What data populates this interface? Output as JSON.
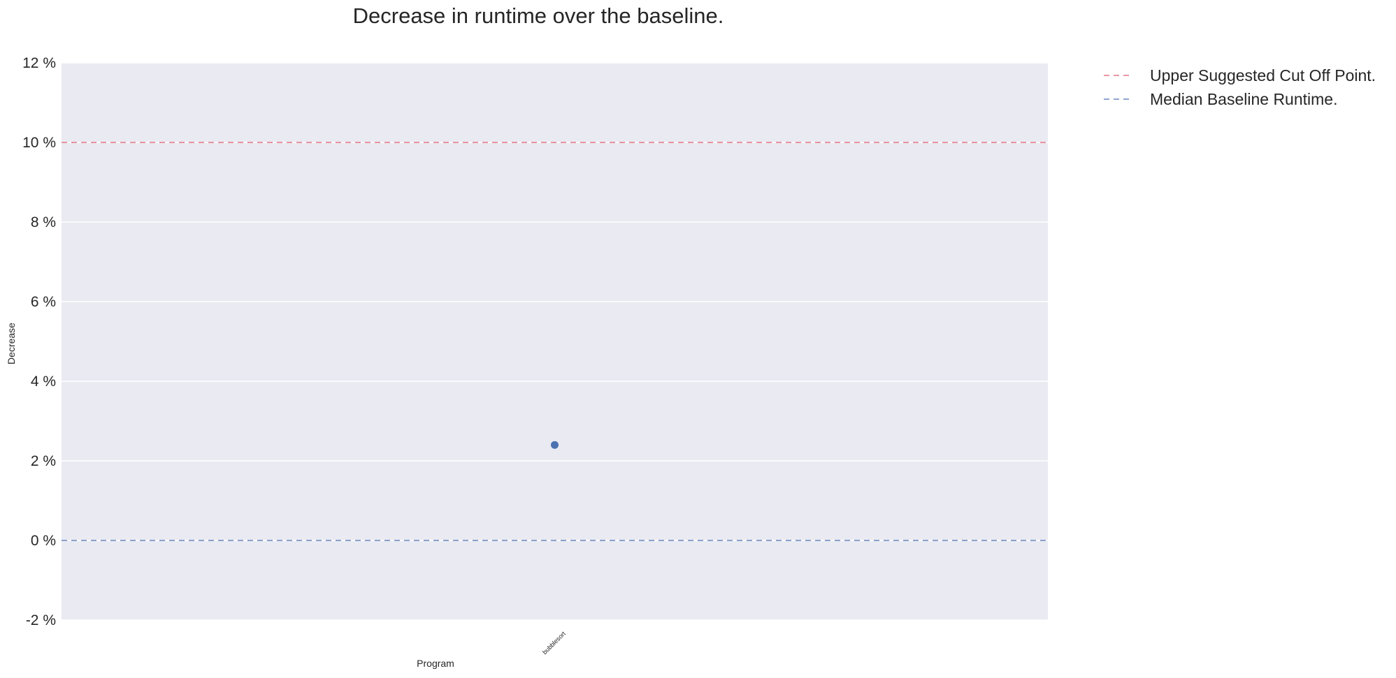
{
  "chart_data": {
    "type": "scatter",
    "title": "Decrease in runtime over the baseline.",
    "xlabel": "Program",
    "ylabel": "Decrease",
    "categories": [
      "bubblesort"
    ],
    "series": [
      {
        "values": [
          2.4
        ],
        "color": "#4c72b0"
      }
    ],
    "ylim": [
      -2,
      12
    ],
    "yticks": [
      {
        "value": -2,
        "label": "-2 %"
      },
      {
        "value": 0,
        "label": "0 %"
      },
      {
        "value": 2,
        "label": "2 %"
      },
      {
        "value": 4,
        "label": "4 %"
      },
      {
        "value": 6,
        "label": "6 %"
      },
      {
        "value": 8,
        "label": "8 %"
      },
      {
        "value": 10,
        "label": "10 %"
      },
      {
        "value": 12,
        "label": "12 %"
      }
    ],
    "reference_lines": [
      {
        "name": "Upper Suggested Cut Off Point.",
        "value": 10,
        "color": "#dd5b6c",
        "style": "dashed"
      },
      {
        "name": "Median Baseline Runtime.",
        "value": 0,
        "color": "#4c72b0",
        "style": "dashed"
      }
    ],
    "legend_placement": "outside-right",
    "grid": true,
    "background_color": "#eaeaf2",
    "grid_color": "#ffffff"
  }
}
